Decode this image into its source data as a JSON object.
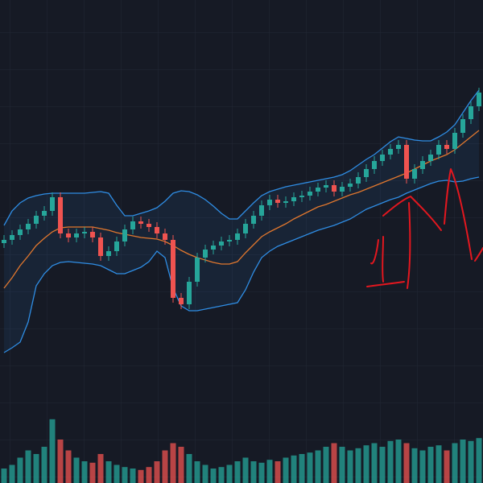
{
  "chart_data": {
    "type": "candlestick",
    "up_color": "#26a69a",
    "down_color": "#ef5350",
    "band_color": "#2f8de4",
    "middle_color": "#e0772e",
    "ylim": [
      0,
      600
    ],
    "volume_lim": [
      0,
      100
    ],
    "open": [
      298,
      302,
      308,
      315,
      322,
      332,
      338,
      355,
      310,
      305,
      310,
      312,
      305,
      282,
      288,
      300,
      315,
      325,
      322,
      318,
      310,
      302,
      230,
      222,
      250,
      280,
      290,
      295,
      300,
      302,
      310,
      322,
      332,
      345,
      352,
      348,
      350,
      355,
      357,
      362,
      367,
      370,
      362,
      368,
      372,
      380,
      390,
      400,
      408,
      415,
      420,
      378,
      390,
      400,
      408,
      420,
      415,
      435,
      452,
      468
    ],
    "high": [
      308,
      314,
      321,
      328,
      338,
      344,
      361,
      361,
      316,
      316,
      318,
      318,
      311,
      294,
      306,
      321,
      331,
      331,
      328,
      324,
      316,
      308,
      236,
      256,
      286,
      296,
      301,
      306,
      308,
      316,
      328,
      338,
      351,
      358,
      358,
      356,
      361,
      363,
      368,
      373,
      376,
      376,
      374,
      378,
      386,
      396,
      406,
      414,
      421,
      426,
      426,
      396,
      406,
      414,
      426,
      426,
      441,
      458,
      474,
      491
    ],
    "low": [
      292,
      296,
      302,
      309,
      316,
      326,
      332,
      304,
      299,
      299,
      304,
      299,
      276,
      276,
      282,
      294,
      309,
      316,
      312,
      304,
      296,
      224,
      216,
      216,
      244,
      274,
      284,
      289,
      294,
      296,
      304,
      316,
      326,
      339,
      342,
      342,
      344,
      349,
      351,
      356,
      361,
      356,
      356,
      362,
      366,
      374,
      384,
      394,
      402,
      409,
      372,
      372,
      384,
      394,
      402,
      409,
      409,
      429,
      446,
      462
    ],
    "close": [
      302,
      308,
      315,
      322,
      332,
      338,
      355,
      310,
      305,
      310,
      312,
      305,
      282,
      288,
      300,
      315,
      325,
      322,
      318,
      310,
      302,
      230,
      222,
      250,
      280,
      290,
      295,
      300,
      302,
      310,
      322,
      332,
      345,
      352,
      348,
      350,
      355,
      357,
      362,
      367,
      370,
      362,
      368,
      372,
      380,
      390,
      400,
      408,
      415,
      420,
      378,
      390,
      400,
      408,
      420,
      415,
      435,
      452,
      468,
      485
    ],
    "volume": [
      20,
      25,
      35,
      45,
      40,
      50,
      88,
      60,
      45,
      35,
      30,
      28,
      40,
      30,
      25,
      22,
      20,
      18,
      22,
      30,
      45,
      55,
      50,
      40,
      30,
      25,
      20,
      22,
      25,
      30,
      35,
      30,
      28,
      32,
      30,
      35,
      38,
      40,
      42,
      45,
      50,
      55,
      50,
      45,
      48,
      52,
      55,
      50,
      58,
      60,
      55,
      48,
      45,
      50,
      52,
      45,
      55,
      60,
      58,
      62
    ],
    "upper": [
      320,
      338,
      348,
      354,
      357,
      359,
      360,
      360,
      360,
      360,
      360,
      361,
      362,
      360,
      345,
      332,
      332,
      335,
      338,
      342,
      350,
      360,
      363,
      362,
      358,
      352,
      344,
      335,
      328,
      328,
      338,
      348,
      357,
      362,
      365,
      368,
      370,
      372,
      374,
      376,
      378,
      380,
      383,
      388,
      395,
      402,
      408,
      416,
      424,
      430,
      428,
      426,
      425,
      425,
      430,
      436,
      445,
      460,
      475,
      488
    ],
    "middle": [
      242,
      255,
      270,
      282,
      295,
      304,
      312,
      317,
      318,
      318,
      318,
      318,
      316,
      314,
      311,
      309,
      307,
      305,
      304,
      303,
      300,
      295,
      289,
      284,
      280,
      277,
      274,
      272,
      272,
      275,
      286,
      296,
      306,
      312,
      317,
      322,
      328,
      333,
      338,
      343,
      346,
      350,
      354,
      358,
      361,
      365,
      369,
      373,
      377,
      381,
      385,
      390,
      395,
      400,
      404,
      408,
      414,
      422,
      430,
      438
    ],
    "lower": [
      162,
      168,
      175,
      200,
      245,
      260,
      270,
      274,
      275,
      274,
      273,
      272,
      270,
      265,
      260,
      260,
      264,
      268,
      275,
      288,
      280,
      242,
      220,
      214,
      214,
      216,
      218,
      220,
      222,
      224,
      240,
      262,
      280,
      288,
      294,
      298,
      302,
      306,
      310,
      314,
      317,
      320,
      324,
      328,
      334,
      340,
      344,
      348,
      352,
      355,
      360,
      364,
      368,
      372,
      375,
      376,
      374,
      375,
      378,
      380
    ]
  }
}
